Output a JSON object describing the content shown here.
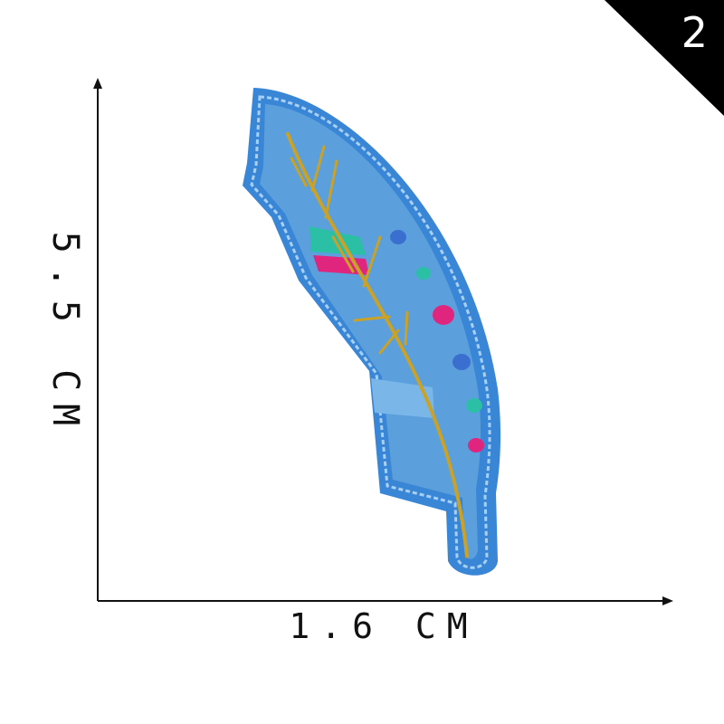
{
  "badge": {
    "number": "2"
  },
  "dimensions": {
    "height_label": "5.5 CM",
    "width_label": "1.6 CM"
  },
  "colors": {
    "felt": "#5b9fdc",
    "border": "#3a86d6",
    "stitch_highlight": "#a8d0f4",
    "gold_thread": "#c9a227",
    "teal": "#2bbfa6",
    "magenta": "#e0257f",
    "badge": "#000000"
  },
  "subject": {
    "icon": "feather-patch-icon"
  }
}
